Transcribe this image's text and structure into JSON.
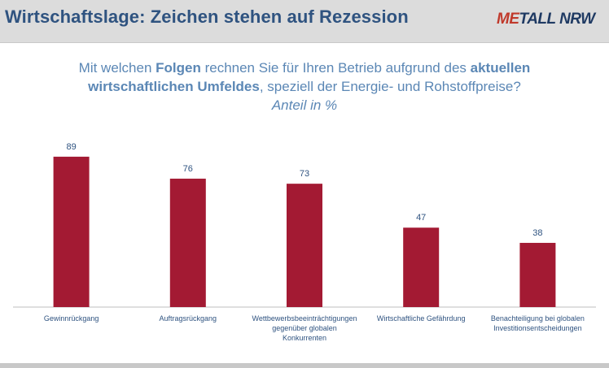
{
  "header": {
    "title": "Wirtschaftslage: Zeichen stehen auf Rezession",
    "logo_part1": "ME",
    "logo_part2": "TALL NRW"
  },
  "question": {
    "part1": "Mit welchen ",
    "bold1": "Folgen",
    "part2": " rechnen Sie für Ihren Betrieb aufgrund des ",
    "bold2": "aktuellen",
    "bold3": "wirtschaftlichen Umfeldes",
    "part3": ", speziell der Energie- und Rohstoffpreise?",
    "unit": "Anteil in %"
  },
  "colors": {
    "bar": "#a31a33",
    "label": "#2f5380",
    "title": "#2f5380",
    "question": "#5b87b5"
  },
  "chart_data": {
    "type": "bar",
    "categories": [
      [
        "Gewinnrückgang"
      ],
      [
        "Auftragsrückgang"
      ],
      [
        "Wettbewerbsbeeinträchtigungen",
        "gegenüber globalen",
        "Konkurrenten"
      ],
      [
        "Wirtschaftliche Gefährdung"
      ],
      [
        "Benachteiligung bei globalen",
        "Investitionsentscheidungen"
      ]
    ],
    "values": [
      89,
      76,
      73,
      47,
      38
    ],
    "ylim": [
      0,
      100
    ],
    "grid": false,
    "legend": "none"
  }
}
